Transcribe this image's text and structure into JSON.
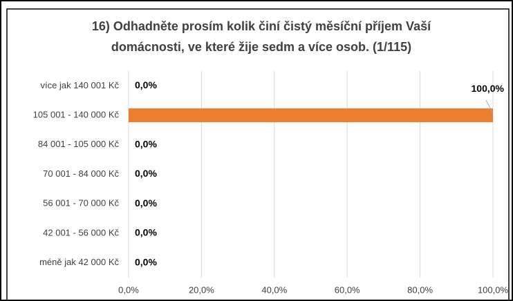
{
  "chart_data": {
    "type": "bar",
    "orientation": "horizontal",
    "title": [
      "16) Odhadněte prosím kolik činí čistý měsíční příjem Vaší",
      "domácnosti, ve které žije sedm a více osob. (1/115)"
    ],
    "categories": [
      "více jak 140 001 Kč",
      "105 001 - 140 000 Kč",
      "84 001 - 105 000 Kč",
      "70 001 - 84 000 Kč",
      "56 001 - 70 000 Kč",
      "42 001 - 56 000 Kč",
      "méně jak 42 000 Kč"
    ],
    "values": [
      0,
      100,
      0,
      0,
      0,
      0,
      0
    ],
    "value_labels": [
      "0,0%",
      "100,0%",
      "0,0%",
      "0,0%",
      "0,0%",
      "0,0%",
      "0,0%"
    ],
    "color": "#ed7d31",
    "xlim": [
      0,
      100
    ],
    "xticks": [
      {
        "value": 0,
        "label": "0,0%"
      },
      {
        "value": 20,
        "label": "20,0%"
      },
      {
        "value": 40,
        "label": "40,0%"
      },
      {
        "value": 60,
        "label": "60,0%"
      },
      {
        "value": 80,
        "label": "80,0%"
      },
      {
        "value": 100,
        "label": "100,0%"
      }
    ],
    "grid": true
  }
}
